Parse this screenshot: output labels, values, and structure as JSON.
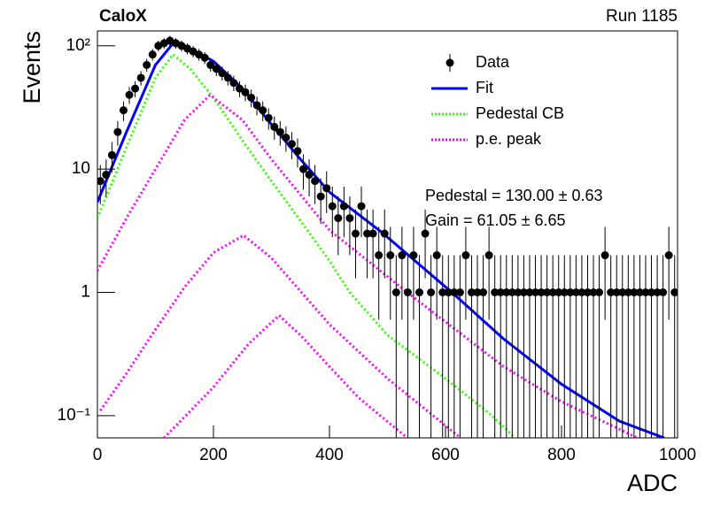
{
  "chart_data": {
    "type": "histogram-fit",
    "title": "CaloX",
    "subtitle": "Run 1185",
    "x_label": "ADC",
    "y_label": "Events",
    "log_y": true,
    "xlim": [
      0,
      1000
    ],
    "xticks": [
      0,
      200,
      400,
      600,
      800,
      1000
    ],
    "ylim": [
      0.066,
      132
    ],
    "yticks": [
      {
        "value": 0.1,
        "label": "10⁻¹"
      },
      1,
      10,
      {
        "value": 100,
        "label": "10²"
      }
    ],
    "annotations": [
      "Pedestal = 130.00 ± 0.63",
      "Gain = 61.05 ± 6.65"
    ],
    "histogram": {
      "name": "Data",
      "color": "#000000",
      "x": [
        5,
        15,
        25,
        35,
        45,
        55,
        65,
        75,
        85,
        95,
        105,
        115,
        125,
        135,
        145,
        155,
        165,
        175,
        185,
        195,
        205,
        215,
        225,
        235,
        245,
        255,
        265,
        275,
        285,
        295,
        305,
        315,
        325,
        335,
        345,
        355,
        365,
        375,
        385,
        395,
        405,
        415,
        425,
        435,
        445,
        455,
        465,
        475,
        485,
        495,
        505,
        515,
        525,
        535,
        545,
        555,
        565,
        575,
        585,
        595,
        605,
        615,
        625,
        635,
        645,
        655,
        665,
        675,
        685,
        695,
        705,
        715,
        725,
        735,
        745,
        755,
        765,
        775,
        785,
        795,
        805,
        815,
        825,
        835,
        845,
        855,
        865,
        875,
        885,
        895,
        905,
        915,
        925,
        935,
        945,
        955,
        965,
        975,
        985,
        995
      ],
      "values": [
        8,
        9,
        13,
        20,
        30,
        40,
        45,
        55,
        70,
        85,
        100,
        105,
        110,
        105,
        100,
        95,
        90,
        85,
        80,
        70,
        65,
        60,
        55,
        50,
        45,
        42,
        38,
        33,
        30,
        26,
        22,
        20,
        18,
        16,
        14,
        10,
        9,
        8,
        6,
        7,
        5,
        4,
        5,
        4,
        3,
        5,
        3,
        3,
        2,
        3,
        2,
        1,
        2,
        1,
        2,
        1,
        3,
        1,
        2,
        1,
        1,
        1,
        1,
        2,
        1,
        1,
        1,
        2,
        1,
        1,
        1,
        1,
        1,
        1,
        1,
        1,
        1,
        1,
        1,
        1,
        1,
        1,
        1,
        1,
        1,
        1,
        1,
        2,
        1,
        1,
        1,
        1,
        1,
        1,
        1,
        1,
        1,
        1,
        2,
        1
      ],
      "errors": [
        2.8,
        3,
        3.6,
        4.5,
        5.5,
        6.3,
        6.7,
        7.4,
        8.4,
        9.2,
        10,
        10.2,
        10.5,
        10.2,
        10,
        9.7,
        9.5,
        9.2,
        8.9,
        8.4,
        8.1,
        7.7,
        7.4,
        7.1,
        6.7,
        6.5,
        6.2,
        5.7,
        5.5,
        5.1,
        4.7,
        4.5,
        4.2,
        4,
        3.7,
        3.2,
        3,
        2.8,
        2.4,
        2.6,
        2.2,
        2,
        2.2,
        2,
        1.7,
        2.2,
        1.7,
        1.7,
        1.4,
        1.7,
        1.4,
        1,
        1.4,
        1,
        1.4,
        1,
        1.7,
        1,
        1.4,
        1,
        1,
        1,
        1,
        1.4,
        1,
        1,
        1,
        1.4,
        1,
        1,
        1,
        1,
        1,
        1,
        1,
        1,
        1,
        1,
        1,
        1,
        1,
        1,
        1,
        1,
        1,
        1,
        1,
        1.4,
        1,
        1,
        1,
        1,
        1,
        1,
        1,
        1,
        1,
        1,
        1.4,
        1
      ]
    },
    "series": [
      {
        "name": "Fit",
        "color": "#0000ff",
        "style": "solid",
        "x": [
          0,
          50,
          100,
          134,
          200,
          250,
          300,
          350,
          400,
          489,
          611,
          700,
          800,
          900,
          977
        ],
        "values": [
          5.4,
          20,
          70,
          110,
          75,
          45,
          23,
          12,
          6.5,
          3.1,
          1,
          0.42,
          0.18,
          0.09,
          0.066
        ]
      },
      {
        "name": "Pedestal CB",
        "color": "#33ff00",
        "style": "dotted",
        "x": [
          0,
          50,
          100,
          130,
          160,
          200,
          250,
          300,
          350,
          400,
          435,
          500,
          600,
          680,
          720
        ],
        "values": [
          4,
          15,
          55,
          85,
          65,
          38,
          17,
          8,
          3.8,
          1.8,
          1,
          0.45,
          0.2,
          0.1,
          0.066
        ]
      },
      {
        "name": "p.e. peak",
        "color": "#ff00ff",
        "style": "dotted",
        "x": [
          0,
          50,
          100,
          150,
          194,
          250,
          300,
          400,
          534,
          700,
          800,
          931
        ],
        "values": [
          1.5,
          4,
          10,
          25,
          40,
          25,
          12,
          3.2,
          1,
          0.25,
          0.13,
          0.066
        ]
      },
      {
        "color": "#ff00ff",
        "style": "dotted",
        "x": [
          5,
          50,
          100,
          150,
          200,
          252,
          300,
          400,
          500,
          626
        ],
        "values": [
          0.11,
          0.22,
          0.5,
          1.1,
          2.1,
          2.9,
          1.9,
          0.55,
          0.2,
          0.066
        ]
      },
      {
        "color": "#ff00ff",
        "style": "dotted",
        "x": [
          115,
          200,
          260,
          313,
          350,
          400,
          450,
          534
        ],
        "values": [
          0.066,
          0.17,
          0.38,
          0.65,
          0.45,
          0.25,
          0.14,
          0.066
        ]
      }
    ]
  }
}
